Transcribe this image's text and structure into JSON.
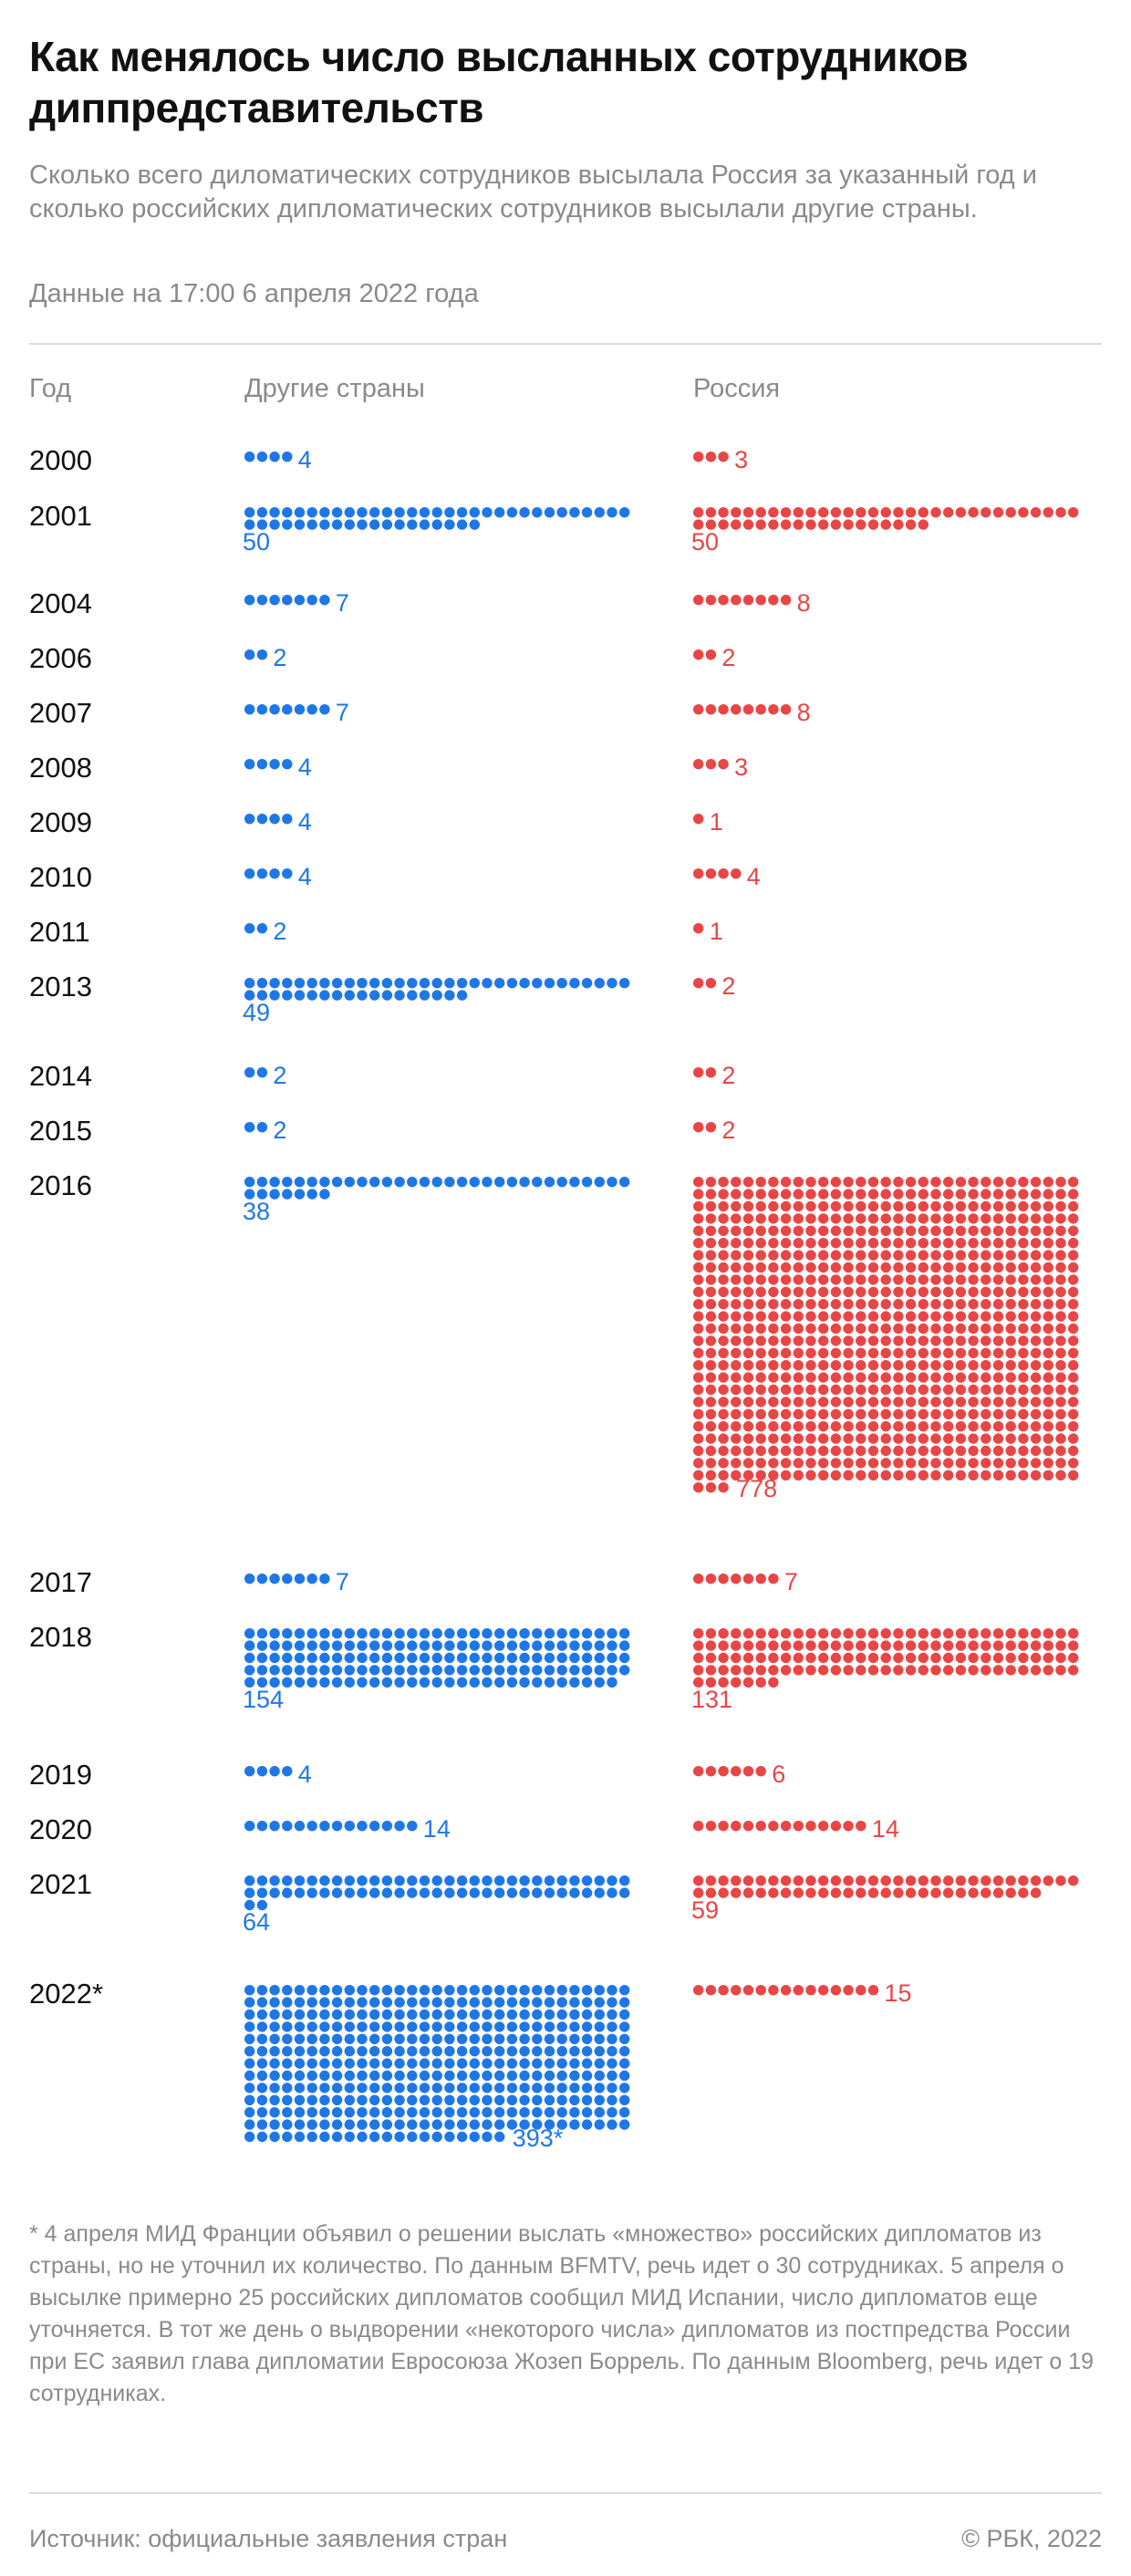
{
  "title": "Как менялось число высланных сотрудников диппредставительств",
  "subtitle": "Сколько всего диломатических сотрудников высылала Россия за указанный год и сколько российских дипломатических сотрудников высылали другие страны.",
  "date_note": "Данные на 17:00 6 апреля 2022 года",
  "headers": {
    "year": "Год",
    "other": "Другие страны",
    "russia": "Россия"
  },
  "colors": {
    "other": "#1f77e6",
    "russia": "#e84646"
  },
  "chart_data": {
    "type": "table",
    "columns": [
      "Год",
      "Другие страны",
      "Россия"
    ],
    "rows": [
      {
        "year": "2000",
        "other": 4,
        "other_label": "4",
        "russia": 3,
        "russia_label": "3"
      },
      {
        "year": "2001",
        "other": 50,
        "other_label": "50",
        "russia": 50,
        "russia_label": "50"
      },
      {
        "year": "2004",
        "other": 7,
        "other_label": "7",
        "russia": 8,
        "russia_label": "8"
      },
      {
        "year": "2006",
        "other": 2,
        "other_label": "2",
        "russia": 2,
        "russia_label": "2"
      },
      {
        "year": "2007",
        "other": 7,
        "other_label": "7",
        "russia": 8,
        "russia_label": "8"
      },
      {
        "year": "2008",
        "other": 4,
        "other_label": "4",
        "russia": 3,
        "russia_label": "3"
      },
      {
        "year": "2009",
        "other": 4,
        "other_label": "4",
        "russia": 1,
        "russia_label": "1"
      },
      {
        "year": "2010",
        "other": 4,
        "other_label": "4",
        "russia": 4,
        "russia_label": "4"
      },
      {
        "year": "2011",
        "other": 2,
        "other_label": "2",
        "russia": 1,
        "russia_label": "1"
      },
      {
        "year": "2013",
        "other": 49,
        "other_label": "49",
        "russia": 2,
        "russia_label": "2"
      },
      {
        "year": "2014",
        "other": 2,
        "other_label": "2",
        "russia": 2,
        "russia_label": "2"
      },
      {
        "year": "2015",
        "other": 2,
        "other_label": "2",
        "russia": 2,
        "russia_label": "2"
      },
      {
        "year": "2016",
        "other": 38,
        "other_label": "38",
        "russia": 778,
        "russia_label": "778"
      },
      {
        "year": "2017",
        "other": 7,
        "other_label": "7",
        "russia": 7,
        "russia_label": "7"
      },
      {
        "year": "2018",
        "other": 154,
        "other_label": "154",
        "russia": 131,
        "russia_label": "131"
      },
      {
        "year": "2019",
        "other": 4,
        "other_label": "4",
        "russia": 6,
        "russia_label": "6"
      },
      {
        "year": "2020",
        "other": 14,
        "other_label": "14",
        "russia": 14,
        "russia_label": "14"
      },
      {
        "year": "2021",
        "other": 64,
        "other_label": "64",
        "russia": 59,
        "russia_label": "59"
      },
      {
        "year": "2022*",
        "other": 393,
        "other_label": "393*",
        "russia": 15,
        "russia_label": "15"
      }
    ]
  },
  "footnote": "* 4 апреля МИД Франции объявил о решении выслать «множество» российских дипломатов из страны, но не уточнил их количество. По данным BFMTV, речь идет о 30 сотрудниках. 5 апреля о высылке примерно 25 российских дипломатов сообщил МИД Испании, число дипломатов еще уточняется. В тот же день о выдворении «некоторого числа» дипломатов из постпредства России при ЕС заявил глава дипломатии Евросоюза Жозеп Боррель. По данным Bloomberg, речь идет о 19 сотрудниках.",
  "source": "Источник: официальные заявления стран",
  "copyright": "© РБК, 2022"
}
